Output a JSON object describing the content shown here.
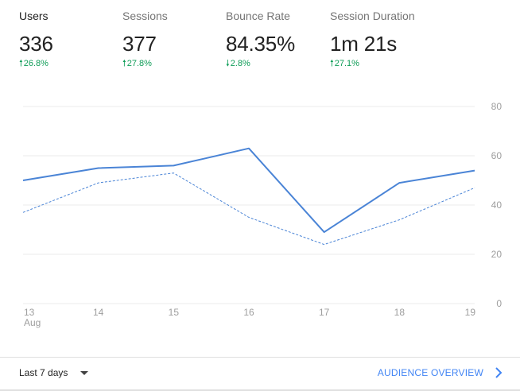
{
  "metrics": [
    {
      "label": "Users",
      "value": "336",
      "change": "26.8%",
      "direction": "up",
      "active": true
    },
    {
      "label": "Sessions",
      "value": "377",
      "change": "27.8%",
      "direction": "up",
      "active": false
    },
    {
      "label": "Bounce Rate",
      "value": "84.35%",
      "change": "2.8%",
      "direction": "down",
      "active": false
    },
    {
      "label": "Session Duration",
      "value": "1m 21s",
      "change": "27.1%",
      "direction": "up",
      "active": false
    }
  ],
  "colors": {
    "primary_line": "#4a84d6",
    "positive": "#0f9d58",
    "link": "#4285f4",
    "grid": "#ebebeb",
    "axis_text": "#9e9e9e"
  },
  "chart_data": {
    "type": "line",
    "categories": [
      "13",
      "14",
      "15",
      "16",
      "17",
      "18",
      "19"
    ],
    "first_tick_sublabel": "Aug",
    "series": [
      {
        "style": "solid",
        "values": [
          50,
          55,
          56,
          63,
          29,
          49,
          54
        ]
      },
      {
        "style": "dashed",
        "values": [
          37,
          49,
          53,
          35,
          24,
          34,
          47
        ]
      }
    ],
    "y_ticks": [
      "0",
      "20",
      "40",
      "60",
      "80"
    ],
    "ylim": [
      0,
      80
    ],
    "y_axis_side": "right",
    "grid": true
  },
  "footer": {
    "range_label": "Last 7 days",
    "link_label": "AUDIENCE OVERVIEW",
    "dropdown_icon": "caret-down-icon",
    "link_icon": "chevron-right-icon"
  }
}
